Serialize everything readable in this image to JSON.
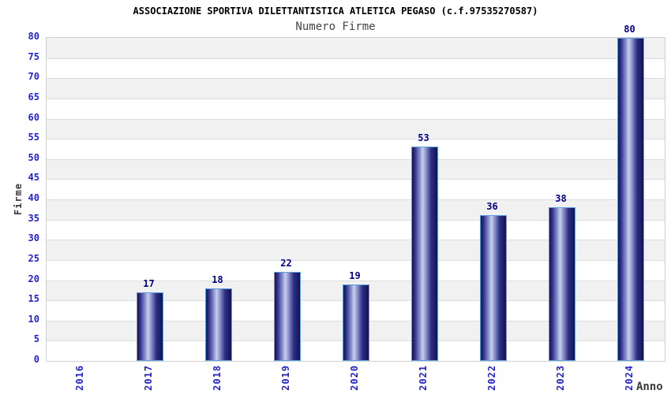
{
  "chart_data": {
    "type": "bar",
    "title": "ASSOCIAZIONE SPORTIVA DILETTANTISTICA ATLETICA PEGASO (c.f.97535270587)",
    "subtitle": "Numero Firme",
    "xlabel": "Anno",
    "ylabel": "Firme",
    "categories": [
      "2016",
      "2017",
      "2018",
      "2019",
      "2020",
      "2021",
      "2022",
      "2023",
      "2024"
    ],
    "values": [
      0,
      17,
      18,
      22,
      19,
      53,
      36,
      38,
      80
    ],
    "ylim": [
      0,
      80
    ],
    "ytick_step": 5,
    "yticks": [
      0,
      5,
      10,
      15,
      20,
      25,
      30,
      35,
      40,
      45,
      50,
      55,
      60,
      65,
      70,
      75,
      80
    ],
    "grid": "horizontal-bands",
    "legend": "none",
    "colors": {
      "bar_dark": "#131353",
      "bar_mid": "#8f98cf",
      "bar_light": "#c9cfee",
      "bar_border": "#5e9fe0",
      "value_label": "#00008b",
      "tick_label": "#2323cc",
      "axis_title": "#3a3a3a",
      "band_gray": "#f1f1f1",
      "band_white": "#ffffff",
      "gridline": "#dcdcdc",
      "plot_border": "#d0d0d0",
      "title_color": "#000000",
      "subtitle_color": "#444444"
    }
  }
}
